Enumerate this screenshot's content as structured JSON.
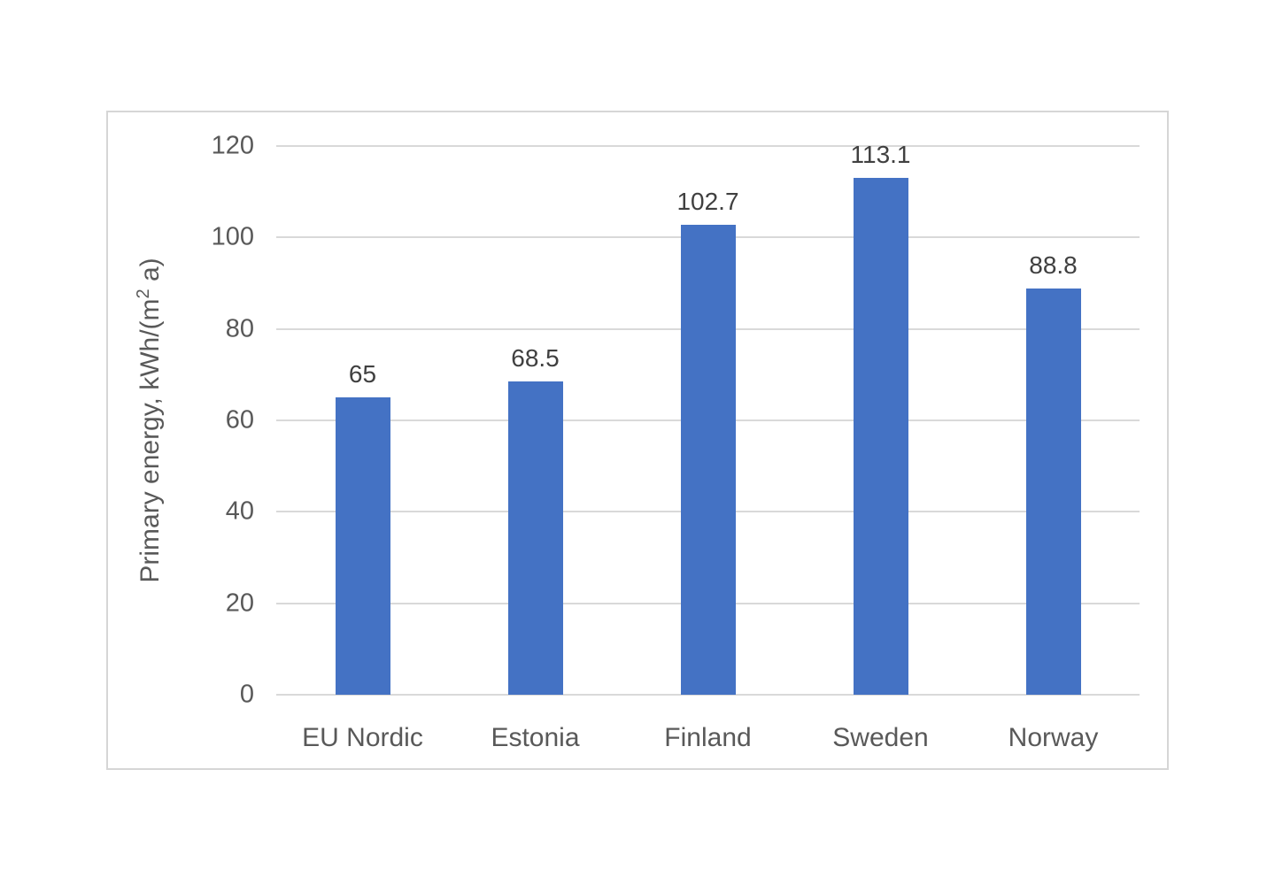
{
  "chart_data": {
    "type": "bar",
    "title": "",
    "categories": [
      "EU Nordic",
      "Estonia",
      "Finland",
      "Sweden",
      "Norway"
    ],
    "values": [
      65,
      68.5,
      102.7,
      113.1,
      88.8
    ],
    "value_labels": [
      "65",
      "68.5",
      "102.7",
      "113.1",
      "88.8"
    ],
    "ylabel": "Primary energy, kWh/(m2 a)",
    "ylabel_parts": {
      "prefix": "Primary energy, kWh/(m",
      "sup": "2",
      "suffix": " a)"
    },
    "xlabel": "",
    "ylim": [
      0,
      120
    ],
    "yticks": [
      0,
      20,
      40,
      60,
      80,
      100,
      120
    ],
    "grid": true,
    "legend": "none",
    "bar_color": "#4472C4",
    "gridline_color": "#D9D9D9",
    "axis_text_color": "#595959",
    "data_label_color": "#404040",
    "frame_border_color": "#D6D6D6",
    "background_color": "#FFFFFF"
  }
}
